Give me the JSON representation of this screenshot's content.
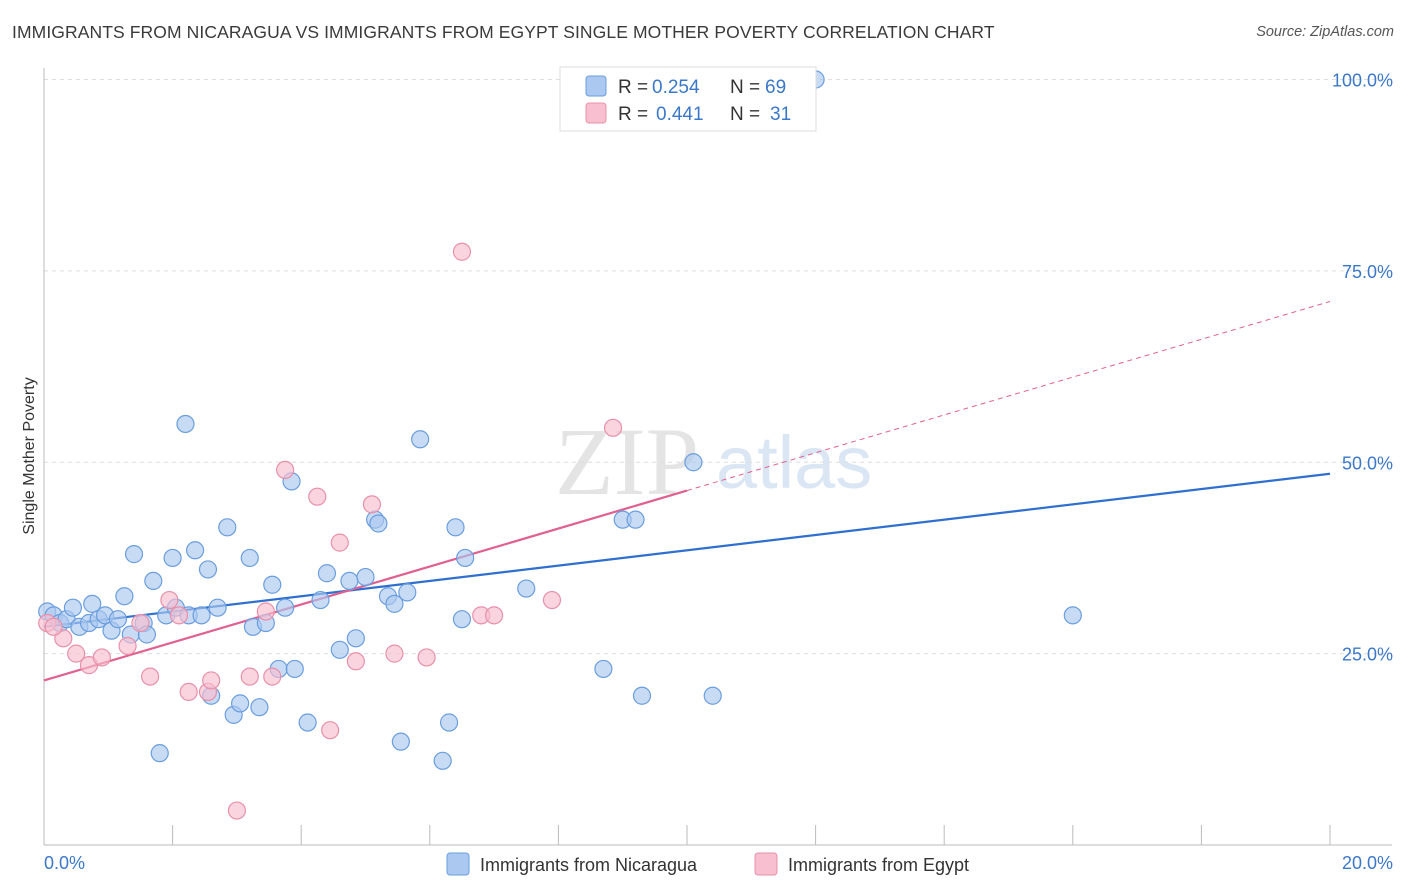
{
  "title": "IMMIGRANTS FROM NICARAGUA VS IMMIGRANTS FROM EGYPT SINGLE MOTHER POVERTY CORRELATION CHART",
  "source": "Source: ZipAtlas.com",
  "watermark": {
    "zip": "ZIP",
    "atlas": "atlas"
  },
  "colors": {
    "nicaragua_fill": "#aac8f0",
    "nicaragua_stroke": "#6a9ede",
    "nicaragua_line": "#2f6fcf",
    "egypt_fill": "#f7bfd0",
    "egypt_stroke": "#e890aa",
    "egypt_line": "#e06090",
    "tick_text": "#3b78c9",
    "grid": "#dddddd"
  },
  "legend": {
    "rows": [
      {
        "r_label": "R = ",
        "r_value": "0.254",
        "n_label": "N = ",
        "n_value": "69"
      },
      {
        "r_label": "R = ",
        "r_value": "0.441",
        "n_label": "N = ",
        "n_value": "31"
      }
    ]
  },
  "bottom_legend": [
    "Immigrants from Nicaragua",
    "Immigrants from Egypt"
  ],
  "chart_data": {
    "type": "scatter",
    "title": "IMMIGRANTS FROM NICARAGUA VS IMMIGRANTS FROM EGYPT SINGLE MOTHER POVERTY CORRELATION CHART",
    "xlabel": "",
    "ylabel": "Single Mother Poverty",
    "xlim": [
      0,
      20
    ],
    "ylim": [
      0,
      105
    ],
    "x_tick_labels": [
      "0.0%",
      "20.0%"
    ],
    "y_ticks": [
      25,
      50,
      75,
      100
    ],
    "y_tick_labels": [
      "25.0%",
      "50.0%",
      "75.0%",
      "100.0%"
    ],
    "grid": "horizontal dashed",
    "legend_position": "top-center",
    "series": [
      {
        "name": "Immigrants from Nicaragua",
        "r": 0.254,
        "n": 69,
        "trend": {
          "x0": 0,
          "y0": 28.5,
          "x1": 20,
          "y1": 48.5
        },
        "points": [
          [
            0.05,
            30.5
          ],
          [
            0.15,
            30
          ],
          [
            0.25,
            29
          ],
          [
            0.35,
            29.5
          ],
          [
            0.45,
            31
          ],
          [
            0.55,
            28.5
          ],
          [
            0.7,
            29
          ],
          [
            0.75,
            31.5
          ],
          [
            0.85,
            29.5
          ],
          [
            0.95,
            30
          ],
          [
            1.05,
            28
          ],
          [
            1.15,
            29.5
          ],
          [
            1.25,
            32.5
          ],
          [
            1.35,
            27.5
          ],
          [
            1.4,
            38
          ],
          [
            1.55,
            29
          ],
          [
            1.6,
            27.5
          ],
          [
            1.7,
            34.5
          ],
          [
            1.8,
            12
          ],
          [
            1.9,
            30
          ],
          [
            2.0,
            37.5
          ],
          [
            2.05,
            31
          ],
          [
            2.2,
            55
          ],
          [
            2.25,
            30
          ],
          [
            2.35,
            38.5
          ],
          [
            2.45,
            30
          ],
          [
            2.55,
            36
          ],
          [
            2.6,
            19.5
          ],
          [
            2.7,
            31
          ],
          [
            2.85,
            41.5
          ],
          [
            2.95,
            17
          ],
          [
            3.05,
            18.5
          ],
          [
            3.2,
            37.5
          ],
          [
            3.25,
            28.5
          ],
          [
            3.35,
            18
          ],
          [
            3.45,
            29
          ],
          [
            3.55,
            34
          ],
          [
            3.65,
            23
          ],
          [
            3.75,
            31
          ],
          [
            3.85,
            47.5
          ],
          [
            3.9,
            23
          ],
          [
            4.1,
            16
          ],
          [
            4.3,
            32
          ],
          [
            4.4,
            35.5
          ],
          [
            4.6,
            25.5
          ],
          [
            4.75,
            34.5
          ],
          [
            4.85,
            27
          ],
          [
            5.0,
            35
          ],
          [
            5.15,
            42.5
          ],
          [
            5.2,
            42
          ],
          [
            5.35,
            32.5
          ],
          [
            5.45,
            31.5
          ],
          [
            5.55,
            13.5
          ],
          [
            5.65,
            33
          ],
          [
            5.85,
            53
          ],
          [
            6.2,
            11
          ],
          [
            6.3,
            16
          ],
          [
            6.4,
            41.5
          ],
          [
            6.5,
            29.5
          ],
          [
            6.55,
            37.5
          ],
          [
            7.5,
            33.5
          ],
          [
            8.7,
            23
          ],
          [
            9.0,
            42.5
          ],
          [
            9.2,
            42.5
          ],
          [
            9.3,
            19.5
          ],
          [
            10.1,
            50
          ],
          [
            10.4,
            19.5
          ],
          [
            12.0,
            100
          ],
          [
            16.0,
            30
          ]
        ]
      },
      {
        "name": "Immigrants from Egypt",
        "r": 0.441,
        "n": 31,
        "trend": {
          "x0": 0,
          "y0": 21.5,
          "x1": 10,
          "y1": 46.3
        },
        "trend_dashed": {
          "x0": 10,
          "y0": 46.3,
          "x1": 20,
          "y1": 71
        },
        "points": [
          [
            0.05,
            29
          ],
          [
            0.3,
            27
          ],
          [
            0.5,
            25
          ],
          [
            0.7,
            23.5
          ],
          [
            0.9,
            24.5
          ],
          [
            1.3,
            26
          ],
          [
            1.5,
            29
          ],
          [
            1.65,
            22
          ],
          [
            1.95,
            32
          ],
          [
            2.1,
            30
          ],
          [
            2.25,
            20
          ],
          [
            2.55,
            20
          ],
          [
            2.6,
            21.5
          ],
          [
            3.0,
            4.5
          ],
          [
            3.2,
            22
          ],
          [
            3.45,
            30.5
          ],
          [
            3.55,
            22
          ],
          [
            3.75,
            49
          ],
          [
            4.25,
            45.5
          ],
          [
            4.45,
            15
          ],
          [
            4.6,
            39.5
          ],
          [
            4.85,
            24
          ],
          [
            5.1,
            44.5
          ],
          [
            5.45,
            25
          ],
          [
            5.95,
            24.5
          ],
          [
            6.5,
            77.5
          ],
          [
            6.8,
            30
          ],
          [
            7.0,
            30
          ],
          [
            7.9,
            32
          ],
          [
            8.85,
            54.5
          ],
          [
            0.15,
            28.5
          ]
        ]
      }
    ]
  }
}
